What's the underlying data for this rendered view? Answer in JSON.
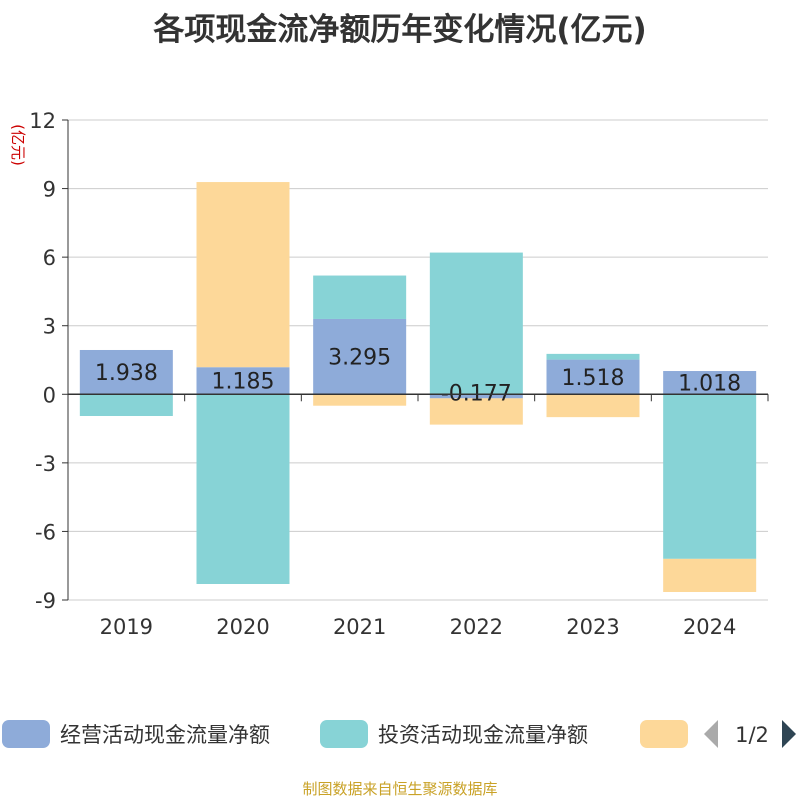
{
  "chart_data": {
    "type": "bar",
    "stacked": true,
    "title": "各项现金流净额历年变化情况(亿元)",
    "ylabel": "(亿元)",
    "ylim": [
      -9,
      12
    ],
    "yticks": [
      12,
      9,
      6,
      3,
      0,
      -3,
      -6,
      -9
    ],
    "grid": true,
    "categories": [
      "2019",
      "2020",
      "2021",
      "2022",
      "2023",
      "2024"
    ],
    "series": [
      {
        "name": "经营活动现金流量净额",
        "color": "#8eabd9",
        "values": [
          1.938,
          1.185,
          3.295,
          -0.177,
          1.518,
          1.018
        ],
        "labels": [
          "1.938",
          "1.185",
          "3.295",
          "-0.177",
          "1.518",
          "1.018"
        ]
      },
      {
        "name": "投资活动现金流量净额",
        "color": "#87d3d6",
        "values": [
          -0.95,
          -8.3,
          1.9,
          6.2,
          0.25,
          -7.2
        ]
      },
      {
        "name": "",
        "color": "#fdd899",
        "values": [
          0,
          8.1,
          -0.5,
          -1.15,
          -1.0,
          -1.45
        ]
      }
    ],
    "legend": {
      "placement": "bottom",
      "page": "1/2"
    }
  },
  "source": "制图数据来自恒生聚源数据库"
}
